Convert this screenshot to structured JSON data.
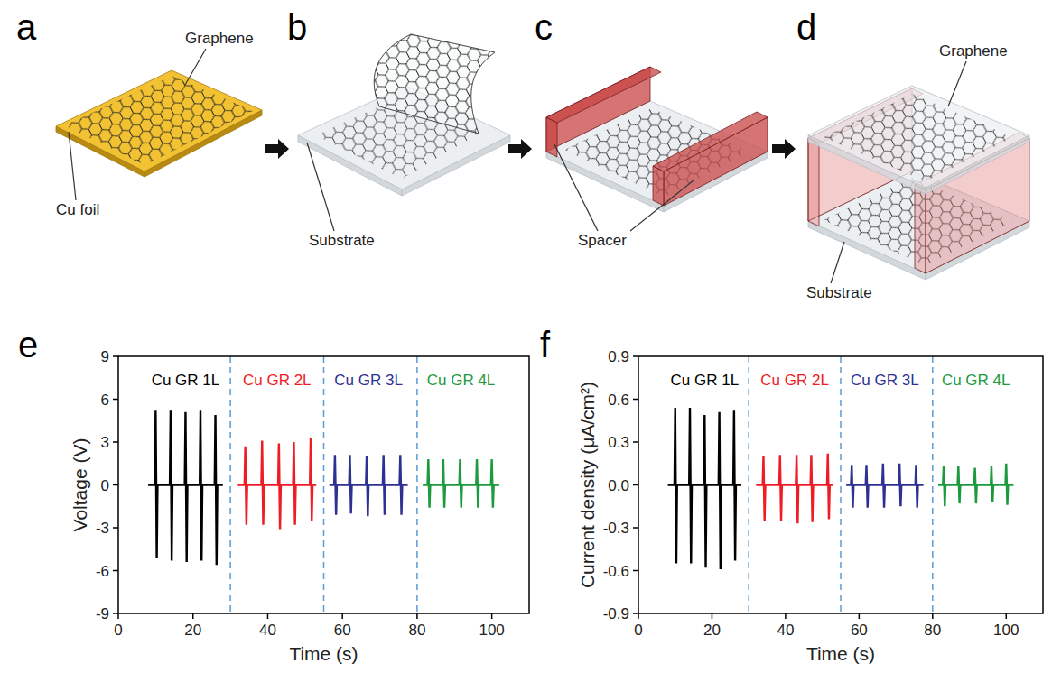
{
  "figure": {
    "panels": [
      {
        "letter": "a",
        "labels": [
          "Graphene",
          "Cu foil"
        ]
      },
      {
        "letter": "b",
        "labels": [
          "Substrate"
        ]
      },
      {
        "letter": "c",
        "labels": [
          "Spacer"
        ]
      },
      {
        "letter": "d",
        "labels": [
          "Graphene",
          "Substrate"
        ]
      }
    ],
    "chart_panels": [
      "e",
      "f"
    ]
  },
  "chart_data": [
    {
      "type": "line",
      "x_label": "Time (s)",
      "y_label": "Voltage (V)",
      "xlim": [
        0,
        110
      ],
      "xticks": [
        0,
        20,
        40,
        60,
        80,
        100
      ],
      "ylim": [
        -9,
        9
      ],
      "yticks": [
        -9,
        -6,
        -3,
        0,
        3,
        6,
        9
      ],
      "grid": false,
      "vlines": [
        30,
        55,
        80
      ],
      "series": [
        {
          "name": "Cu GR 1L",
          "color": "#000000",
          "x": [
            8,
            9.8,
            10,
            10.3,
            10.5,
            13.8,
            14,
            14.3,
            14.5,
            17.8,
            18,
            18.3,
            18.5,
            21.8,
            22,
            22.3,
            22.5,
            25.8,
            26,
            26.3,
            26.5,
            28
          ],
          "values": [
            0,
            0,
            5.2,
            -5.1,
            0,
            0,
            5.2,
            -5.3,
            0,
            0,
            5.1,
            -5.4,
            0,
            0,
            5.2,
            -5.3,
            0,
            0,
            4.9,
            -5.6,
            0,
            0
          ]
        },
        {
          "name": "Cu GR 2L",
          "color": "#ee1c24",
          "x": [
            32,
            33.8,
            34,
            34.3,
            34.5,
            38.3,
            38.5,
            38.8,
            39,
            42.8,
            43,
            43.3,
            43.5,
            46.8,
            47,
            47.3,
            47.5,
            51.3,
            51.5,
            51.8,
            52,
            53
          ],
          "values": [
            0,
            0,
            2.7,
            -2.8,
            0,
            0,
            3.1,
            -2.8,
            0,
            0,
            2.9,
            -3.1,
            0,
            0,
            3.0,
            -2.8,
            0,
            0,
            3.3,
            -2.5,
            0,
            0
          ]
        },
        {
          "name": "Cu GR 3L",
          "color": "#2e3192",
          "x": [
            56.5,
            57.8,
            58,
            58.3,
            58.5,
            61.8,
            62,
            62.3,
            62.5,
            66.3,
            66.5,
            66.8,
            67,
            70.8,
            71,
            71.3,
            71.5,
            75.3,
            75.5,
            75.8,
            76,
            77.5
          ],
          "values": [
            0,
            0,
            2.1,
            -2.1,
            0,
            0,
            2.1,
            -2.0,
            0,
            0,
            2.0,
            -2.2,
            0,
            0,
            2.1,
            -2.1,
            0,
            0,
            2.1,
            -2.1,
            0,
            0
          ]
        },
        {
          "name": "Cu GR 4L",
          "color": "#1b9a3e",
          "x": [
            81.5,
            82.8,
            83,
            83.3,
            83.5,
            86.8,
            87,
            87.3,
            87.5,
            91.3,
            91.5,
            91.8,
            92,
            95.8,
            96,
            96.3,
            96.5,
            99.8,
            100,
            100.3,
            100.5,
            102
          ],
          "values": [
            0,
            0,
            1.8,
            -1.6,
            0,
            0,
            1.8,
            -1.6,
            0,
            0,
            1.8,
            -1.6,
            0,
            0,
            1.8,
            -1.6,
            0,
            0,
            1.8,
            -1.6,
            0,
            0
          ]
        }
      ]
    },
    {
      "type": "line",
      "x_label": "Time (s)",
      "y_label": "Current density (μA/cm²)",
      "xlim": [
        0,
        110
      ],
      "xticks": [
        0,
        20,
        40,
        60,
        80,
        100
      ],
      "ylim": [
        -0.9,
        0.9
      ],
      "yticks": [
        -0.9,
        -0.6,
        -0.3,
        {
          "value": 0,
          "label": "0.0"
        },
        0.3,
        0.6,
        0.9
      ],
      "grid": false,
      "vlines": [
        30,
        55,
        80
      ],
      "series": [
        {
          "name": "Cu GR 1L",
          "color": "#000000",
          "x": [
            8,
            9.8,
            10,
            10.3,
            10.5,
            13.8,
            14,
            14.3,
            14.5,
            17.8,
            18,
            18.3,
            18.5,
            21.8,
            22,
            22.3,
            22.5,
            25.8,
            26,
            26.3,
            26.5,
            28
          ],
          "values": [
            0,
            0,
            0.54,
            -0.55,
            0,
            0,
            0.54,
            -0.55,
            0,
            0,
            0.49,
            -0.58,
            0,
            0,
            0.51,
            -0.59,
            0,
            0,
            0.52,
            -0.53,
            0,
            0
          ]
        },
        {
          "name": "Cu GR 2L",
          "color": "#ee1c24",
          "x": [
            32,
            33.8,
            34,
            34.3,
            34.5,
            38.3,
            38.5,
            38.8,
            39,
            42.8,
            43,
            43.3,
            43.5,
            46.8,
            47,
            47.3,
            47.5,
            51.3,
            51.5,
            51.8,
            52,
            53
          ],
          "values": [
            0,
            0,
            0.2,
            -0.25,
            0,
            0,
            0.21,
            -0.25,
            0,
            0,
            0.21,
            -0.27,
            0,
            0,
            0.21,
            -0.26,
            0,
            0,
            0.22,
            -0.24,
            0,
            0
          ]
        },
        {
          "name": "Cu GR 3L",
          "color": "#2e3192",
          "x": [
            56.5,
            57.8,
            58,
            58.3,
            58.5,
            61.8,
            62,
            62.3,
            62.5,
            66.3,
            66.5,
            66.8,
            67,
            70.8,
            71,
            71.3,
            71.5,
            75.3,
            75.5,
            75.8,
            76,
            77.5
          ],
          "values": [
            0,
            0,
            0.14,
            -0.16,
            0,
            0,
            0.14,
            -0.16,
            0,
            0,
            0.15,
            -0.16,
            0,
            0,
            0.15,
            -0.15,
            0,
            0,
            0.14,
            -0.16,
            0,
            0
          ]
        },
        {
          "name": "Cu GR 4L",
          "color": "#1b9a3e",
          "x": [
            81.5,
            82.8,
            83,
            83.3,
            83.5,
            86.8,
            87,
            87.3,
            87.5,
            91.3,
            91.5,
            91.8,
            92,
            95.8,
            96,
            96.3,
            96.5,
            99.8,
            100,
            100.3,
            100.5,
            102
          ],
          "values": [
            0,
            0,
            0.13,
            -0.15,
            0,
            0,
            0.13,
            -0.13,
            0,
            0,
            0.12,
            -0.13,
            0,
            0,
            0.13,
            -0.12,
            0,
            0,
            0.15,
            -0.14,
            0,
            0
          ]
        }
      ]
    }
  ]
}
